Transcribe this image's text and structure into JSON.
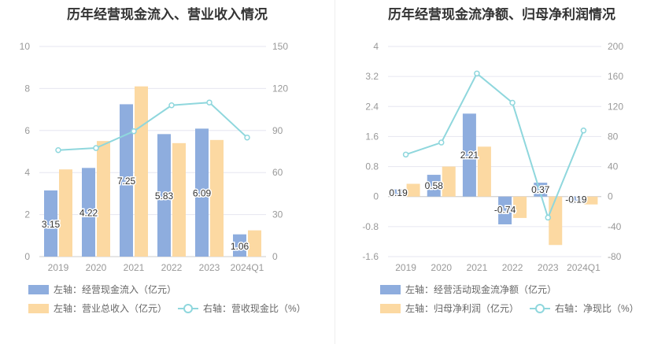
{
  "colors": {
    "bar_primary": "#8eadde",
    "bar_secondary": "#fcd9a2",
    "line": "#8fd7dd",
    "axis_text": "#999999",
    "grid": "#e6e6f0",
    "title": "#333333"
  },
  "chart_data": [
    {
      "type": "bar+line",
      "title": "历年经营现金流入、营业收入情况",
      "categories": [
        "2019",
        "2020",
        "2021",
        "2022",
        "2023",
        "2024Q1"
      ],
      "left_axis": {
        "ylim": [
          0,
          10
        ],
        "ticks": [
          "0",
          "2",
          "4",
          "6",
          "8",
          "10"
        ]
      },
      "right_axis": {
        "ylim": [
          0,
          150
        ],
        "ticks": [
          "0",
          "30",
          "60",
          "90",
          "120",
          "150"
        ]
      },
      "series": [
        {
          "name": "左轴：经营现金流入（亿元）",
          "axis": "left",
          "kind": "bar",
          "values": [
            3.15,
            4.22,
            7.25,
            5.83,
            6.09,
            1.06
          ],
          "labels": [
            "3.15",
            "4.22",
            "7.25",
            "5.83",
            "6.09",
            "1.06"
          ]
        },
        {
          "name": "左轴：营业总收入（亿元）",
          "axis": "left",
          "kind": "bar",
          "values": [
            4.15,
            5.5,
            8.1,
            5.4,
            5.55,
            1.25
          ]
        },
        {
          "name": "右轴：营收现金比（%）",
          "axis": "right",
          "kind": "line",
          "values": [
            76,
            77.5,
            89.5,
            108,
            110,
            85
          ]
        }
      ]
    },
    {
      "type": "bar+line",
      "title": "历年经营现金流净额、归母净利润情况",
      "categories": [
        "2019",
        "2020",
        "2021",
        "2022",
        "2023",
        "2024Q1"
      ],
      "left_axis": {
        "ylim": [
          -1.6,
          4
        ],
        "ticks": [
          "-1.6",
          "-0.8",
          "0",
          "0.8",
          "1.6",
          "2.4",
          "3.2",
          "4"
        ]
      },
      "right_axis": {
        "ylim": [
          -80,
          200
        ],
        "ticks": [
          "-80",
          "-40",
          "0",
          "40",
          "80",
          "120",
          "160",
          "200"
        ]
      },
      "series": [
        {
          "name": "左轴：经营活动现金流净额（亿元）",
          "axis": "left",
          "kind": "bar",
          "values": [
            0.19,
            0.58,
            2.21,
            -0.74,
            0.37,
            -0.19
          ],
          "labels": [
            "0.19",
            "0.58",
            "2.21",
            "-0.74",
            "0.37",
            "-0.19"
          ]
        },
        {
          "name": "左轴：归母净利润（亿元）",
          "axis": "left",
          "kind": "bar",
          "values": [
            0.34,
            0.8,
            1.33,
            -0.57,
            -1.29,
            -0.21
          ]
        },
        {
          "name": "右轴：净现比（%）",
          "axis": "right",
          "kind": "line",
          "values": [
            56,
            72,
            164,
            125,
            -28,
            88
          ]
        }
      ]
    }
  ]
}
